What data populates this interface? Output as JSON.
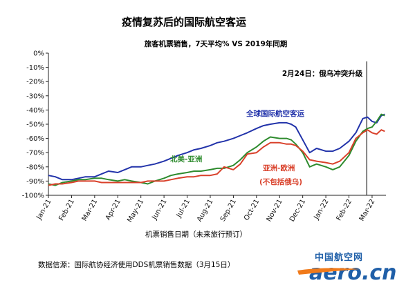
{
  "chart_data": {
    "type": "line",
    "title": "疫情复苏后的国际航空客运",
    "subtitle": "旅客机票销售，7天平均% VS 2019年同期",
    "xlabel": "机票销售日期（未来旅行预订）",
    "ylabel": "",
    "ylim": [
      -100,
      0
    ],
    "yticks": [
      "0%",
      "-10%",
      "-20%",
      "-30%",
      "-40%",
      "-50%",
      "-60%",
      "-70%",
      "-80%",
      "-90%",
      "-100%"
    ],
    "ytick_values": [
      0,
      -10,
      -20,
      -30,
      -40,
      -50,
      -60,
      -70,
      -80,
      -90,
      -100
    ],
    "x_categories": [
      "Jan-21",
      "Feb-21",
      "Mar-21",
      "Apr-21",
      "May-21",
      "Jun-21",
      "Jul-21",
      "Aug-21",
      "Sep-21",
      "Oct-21",
      "Nov-21",
      "Dec-21",
      "Jan-22",
      "Feb-22",
      "Mar-22"
    ],
    "x_range": [
      0,
      14.6
    ],
    "annotation": {
      "label": "2月24日：俄乌冲突升级",
      "x": 13.77
    },
    "series": [
      {
        "name": "全球国际航空客运",
        "color": "#2233aa",
        "x": [
          0,
          0.3,
          0.6,
          1.0,
          1.3,
          1.6,
          2.0,
          2.3,
          2.6,
          3.0,
          3.3,
          3.6,
          4.0,
          4.3,
          4.6,
          5.0,
          5.3,
          5.6,
          6.0,
          6.3,
          6.6,
          7.0,
          7.3,
          7.6,
          8.0,
          8.3,
          8.6,
          9.0,
          9.3,
          9.6,
          10.0,
          10.3,
          10.5,
          10.7,
          11.0,
          11.3,
          11.6,
          12.0,
          12.3,
          12.6,
          13.0,
          13.3,
          13.6,
          13.8,
          14.0,
          14.2,
          14.4,
          14.55
        ],
        "y": [
          -86,
          -87,
          -89,
          -89,
          -88,
          -87,
          -87,
          -85,
          -83,
          -84,
          -82,
          -80,
          -80,
          -79,
          -78,
          -76,
          -74,
          -72,
          -70,
          -68,
          -67,
          -65,
          -63,
          -62,
          -60,
          -58,
          -56,
          -53,
          -51,
          -50,
          -49,
          -49,
          -50,
          -52,
          -61,
          -70,
          -67,
          -69,
          -69,
          -67,
          -62,
          -56,
          -46,
          -45,
          -48,
          -49,
          -44,
          -43
        ]
      },
      {
        "name": "北美-亚洲",
        "color": "#2e8b2e",
        "x": [
          0,
          0.3,
          0.6,
          1.0,
          1.3,
          1.6,
          2.0,
          2.3,
          2.6,
          3.0,
          3.3,
          3.6,
          4.0,
          4.3,
          4.6,
          5.0,
          5.3,
          5.6,
          6.0,
          6.3,
          6.6,
          7.0,
          7.3,
          7.6,
          8.0,
          8.3,
          8.6,
          9.0,
          9.3,
          9.6,
          10.0,
          10.3,
          10.5,
          10.7,
          11.0,
          11.3,
          11.6,
          12.0,
          12.3,
          12.6,
          13.0,
          13.3,
          13.6,
          13.8,
          14.0,
          14.2,
          14.4,
          14.55
        ],
        "y": [
          -92,
          -93,
          -91,
          -90,
          -89,
          -89,
          -88,
          -88,
          -89,
          -90,
          -89,
          -90,
          -91,
          -92,
          -90,
          -88,
          -86,
          -85,
          -84,
          -83,
          -83,
          -82,
          -81,
          -81,
          -79,
          -75,
          -70,
          -66,
          -62,
          -59,
          -60,
          -60,
          -61,
          -64,
          -70,
          -80,
          -78,
          -80,
          -82,
          -80,
          -72,
          -62,
          -55,
          -53,
          -52,
          -48,
          -43,
          -44
        ]
      },
      {
        "name": "亚洲-欧洲",
        "color": "#d9402a",
        "x": [
          0,
          0.3,
          0.6,
          1.0,
          1.3,
          1.6,
          2.0,
          2.3,
          2.6,
          3.0,
          3.3,
          3.6,
          4.0,
          4.3,
          4.6,
          5.0,
          5.3,
          5.6,
          6.0,
          6.3,
          6.6,
          7.0,
          7.3,
          7.6,
          8.0,
          8.3,
          8.6,
          9.0,
          9.3,
          9.6,
          10.0,
          10.3,
          10.5,
          10.7,
          11.0,
          11.3,
          11.6,
          12.0,
          12.3,
          12.6,
          13.0,
          13.3,
          13.6,
          13.8,
          14.0,
          14.2,
          14.4,
          14.55
        ],
        "y": [
          -93,
          -92,
          -92,
          -91,
          -90,
          -90,
          -90,
          -91,
          -91,
          -91,
          -91,
          -91,
          -91,
          -90,
          -90,
          -90,
          -89,
          -88,
          -87,
          -87,
          -86,
          -86,
          -85,
          -80,
          -82,
          -78,
          -71,
          -70,
          -66,
          -63,
          -63,
          -64,
          -64,
          -65,
          -69,
          -75,
          -76,
          -77,
          -78,
          -76,
          -70,
          -60,
          -56,
          -54,
          -56,
          -57,
          -54,
          -55
        ]
      }
    ],
    "series_labels": [
      {
        "text": "全球国际航空客运",
        "color": "#2233aa"
      },
      {
        "text": "北美-亚洲",
        "color": "#2e8b2e"
      },
      {
        "text": "亚洲-欧洲",
        "color": "#d9402a"
      },
      {
        "text": "(不包括俄乌)",
        "color": "#d9402a"
      }
    ],
    "grid": false,
    "legend": "none"
  },
  "source_note": "数据信源：国际航协经济使用DDS机票销售数据（3月15日）",
  "watermark": {
    "cn": "中国航空网",
    "en": "aero.cn"
  }
}
